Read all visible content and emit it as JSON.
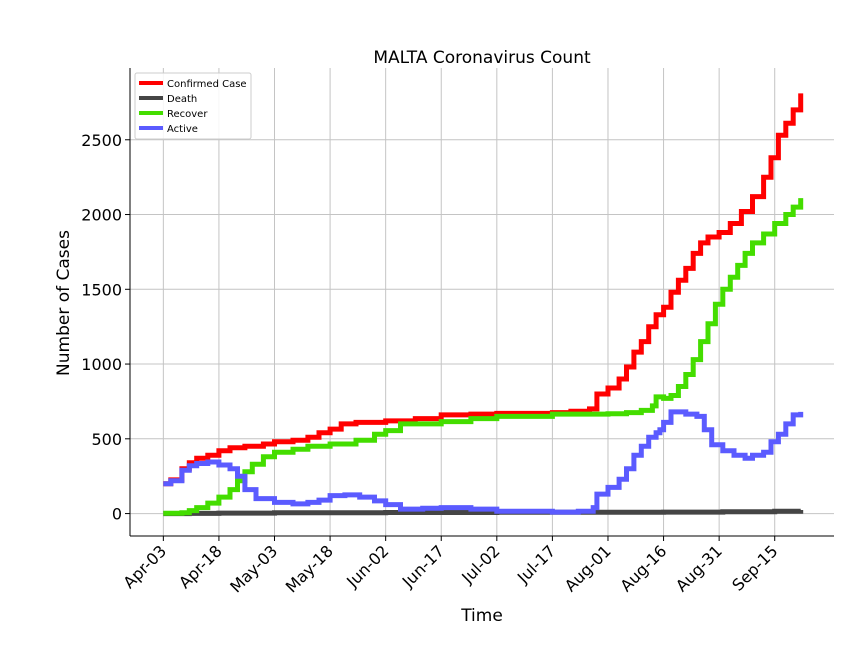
{
  "chart_data": {
    "type": "line",
    "title": "MALTA Coronavirus Count",
    "xlabel": "Time",
    "ylabel": "Number of Cases",
    "x_ticks": [
      "Apr-03",
      "Apr-18",
      "May-03",
      "May-18",
      "Jun-02",
      "Jun-17",
      "Jul-02",
      "Jul-17",
      "Aug-01",
      "Aug-16",
      "Aug-31",
      "Sep-15"
    ],
    "y_ticks": [
      "0",
      "500",
      "1000",
      "1500",
      "2000",
      "2500"
    ],
    "ylim": [
      -150,
      2980
    ],
    "xlim": [
      "2020-03-25",
      "2020-10-01"
    ],
    "grid": true,
    "legend_position": "top-left",
    "series": [
      {
        "name": "Confirmed Case",
        "color": "#ff0000",
        "points": [
          [
            "2020-04-03",
            200
          ],
          [
            "2020-04-05",
            225
          ],
          [
            "2020-04-08",
            300
          ],
          [
            "2020-04-10",
            340
          ],
          [
            "2020-04-12",
            370
          ],
          [
            "2020-04-15",
            390
          ],
          [
            "2020-04-18",
            420
          ],
          [
            "2020-04-21",
            440
          ],
          [
            "2020-04-25",
            450
          ],
          [
            "2020-04-30",
            465
          ],
          [
            "2020-05-03",
            480
          ],
          [
            "2020-05-08",
            490
          ],
          [
            "2020-05-12",
            510
          ],
          [
            "2020-05-15",
            540
          ],
          [
            "2020-05-18",
            565
          ],
          [
            "2020-05-21",
            600
          ],
          [
            "2020-05-25",
            610
          ],
          [
            "2020-06-02",
            620
          ],
          [
            "2020-06-10",
            635
          ],
          [
            "2020-06-17",
            660
          ],
          [
            "2020-06-25",
            665
          ],
          [
            "2020-07-02",
            670
          ],
          [
            "2020-07-17",
            675
          ],
          [
            "2020-07-22",
            685
          ],
          [
            "2020-07-27",
            700
          ],
          [
            "2020-07-29",
            800
          ],
          [
            "2020-08-01",
            840
          ],
          [
            "2020-08-04",
            900
          ],
          [
            "2020-08-06",
            980
          ],
          [
            "2020-08-08",
            1080
          ],
          [
            "2020-08-10",
            1150
          ],
          [
            "2020-08-12",
            1250
          ],
          [
            "2020-08-14",
            1330
          ],
          [
            "2020-08-16",
            1380
          ],
          [
            "2020-08-18",
            1480
          ],
          [
            "2020-08-20",
            1560
          ],
          [
            "2020-08-22",
            1640
          ],
          [
            "2020-08-24",
            1740
          ],
          [
            "2020-08-26",
            1810
          ],
          [
            "2020-08-28",
            1850
          ],
          [
            "2020-08-31",
            1880
          ],
          [
            "2020-09-03",
            1940
          ],
          [
            "2020-09-06",
            2020
          ],
          [
            "2020-09-09",
            2120
          ],
          [
            "2020-09-12",
            2250
          ],
          [
            "2020-09-14",
            2380
          ],
          [
            "2020-09-16",
            2530
          ],
          [
            "2020-09-18",
            2610
          ],
          [
            "2020-09-20",
            2700
          ],
          [
            "2020-09-22",
            2810
          ]
        ]
      },
      {
        "name": "Death",
        "color": "#454545",
        "points": [
          [
            "2020-04-03",
            0
          ],
          [
            "2020-04-10",
            1
          ],
          [
            "2020-04-18",
            3
          ],
          [
            "2020-05-03",
            5
          ],
          [
            "2020-06-02",
            7
          ],
          [
            "2020-07-02",
            9
          ],
          [
            "2020-08-01",
            9
          ],
          [
            "2020-08-16",
            10
          ],
          [
            "2020-09-01",
            12
          ],
          [
            "2020-09-15",
            15
          ],
          [
            "2020-09-22",
            24
          ]
        ]
      },
      {
        "name": "Recover",
        "color": "#44dd00",
        "points": [
          [
            "2020-04-03",
            2
          ],
          [
            "2020-04-08",
            5
          ],
          [
            "2020-04-10",
            20
          ],
          [
            "2020-04-12",
            40
          ],
          [
            "2020-04-15",
            70
          ],
          [
            "2020-04-18",
            110
          ],
          [
            "2020-04-21",
            160
          ],
          [
            "2020-04-23",
            220
          ],
          [
            "2020-04-25",
            280
          ],
          [
            "2020-04-27",
            330
          ],
          [
            "2020-04-30",
            380
          ],
          [
            "2020-05-03",
            410
          ],
          [
            "2020-05-08",
            430
          ],
          [
            "2020-05-12",
            450
          ],
          [
            "2020-05-18",
            465
          ],
          [
            "2020-05-25",
            490
          ],
          [
            "2020-05-30",
            530
          ],
          [
            "2020-06-02",
            555
          ],
          [
            "2020-06-06",
            600
          ],
          [
            "2020-06-17",
            615
          ],
          [
            "2020-06-25",
            635
          ],
          [
            "2020-07-02",
            650
          ],
          [
            "2020-07-17",
            665
          ],
          [
            "2020-08-01",
            668
          ],
          [
            "2020-08-06",
            675
          ],
          [
            "2020-08-10",
            690
          ],
          [
            "2020-08-13",
            720
          ],
          [
            "2020-08-14",
            780
          ],
          [
            "2020-08-16",
            770
          ],
          [
            "2020-08-18",
            790
          ],
          [
            "2020-08-20",
            850
          ],
          [
            "2020-08-22",
            930
          ],
          [
            "2020-08-24",
            1030
          ],
          [
            "2020-08-26",
            1150
          ],
          [
            "2020-08-28",
            1270
          ],
          [
            "2020-08-30",
            1400
          ],
          [
            "2020-09-01",
            1500
          ],
          [
            "2020-09-03",
            1580
          ],
          [
            "2020-09-05",
            1660
          ],
          [
            "2020-09-07",
            1740
          ],
          [
            "2020-09-09",
            1810
          ],
          [
            "2020-09-12",
            1870
          ],
          [
            "2020-09-15",
            1940
          ],
          [
            "2020-09-18",
            2000
          ],
          [
            "2020-09-20",
            2050
          ],
          [
            "2020-09-22",
            2110
          ]
        ]
      },
      {
        "name": "Active",
        "color": "#5b5bff",
        "points": [
          [
            "2020-04-03",
            200
          ],
          [
            "2020-04-05",
            220
          ],
          [
            "2020-04-08",
            290
          ],
          [
            "2020-04-10",
            320
          ],
          [
            "2020-04-12",
            335
          ],
          [
            "2020-04-15",
            345
          ],
          [
            "2020-04-18",
            325
          ],
          [
            "2020-04-21",
            300
          ],
          [
            "2020-04-23",
            250
          ],
          [
            "2020-04-25",
            160
          ],
          [
            "2020-04-28",
            100
          ],
          [
            "2020-05-03",
            75
          ],
          [
            "2020-05-08",
            65
          ],
          [
            "2020-05-12",
            75
          ],
          [
            "2020-05-15",
            90
          ],
          [
            "2020-05-18",
            120
          ],
          [
            "2020-05-22",
            125
          ],
          [
            "2020-05-26",
            110
          ],
          [
            "2020-05-30",
            85
          ],
          [
            "2020-06-02",
            60
          ],
          [
            "2020-06-06",
            30
          ],
          [
            "2020-06-12",
            35
          ],
          [
            "2020-06-17",
            40
          ],
          [
            "2020-06-25",
            30
          ],
          [
            "2020-07-02",
            15
          ],
          [
            "2020-07-17",
            10
          ],
          [
            "2020-07-24",
            15
          ],
          [
            "2020-07-28",
            40
          ],
          [
            "2020-07-29",
            130
          ],
          [
            "2020-08-01",
            175
          ],
          [
            "2020-08-04",
            230
          ],
          [
            "2020-08-06",
            300
          ],
          [
            "2020-08-08",
            390
          ],
          [
            "2020-08-10",
            450
          ],
          [
            "2020-08-12",
            510
          ],
          [
            "2020-08-14",
            540
          ],
          [
            "2020-08-15",
            560
          ],
          [
            "2020-08-16",
            610
          ],
          [
            "2020-08-18",
            680
          ],
          [
            "2020-08-20",
            680
          ],
          [
            "2020-08-22",
            665
          ],
          [
            "2020-08-25",
            650
          ],
          [
            "2020-08-27",
            560
          ],
          [
            "2020-08-29",
            460
          ],
          [
            "2020-09-01",
            420
          ],
          [
            "2020-09-04",
            390
          ],
          [
            "2020-09-07",
            370
          ],
          [
            "2020-09-09",
            390
          ],
          [
            "2020-09-12",
            410
          ],
          [
            "2020-09-14",
            480
          ],
          [
            "2020-09-16",
            530
          ],
          [
            "2020-09-18",
            600
          ],
          [
            "2020-09-20",
            660
          ],
          [
            "2020-09-22",
            680
          ]
        ]
      }
    ]
  }
}
